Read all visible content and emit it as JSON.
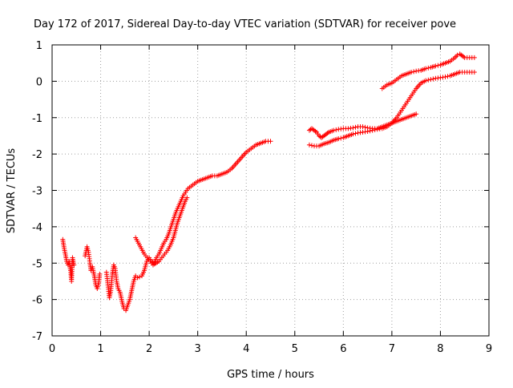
{
  "chart_data": {
    "type": "scatter",
    "title": "Day 172 of 2017, Sidereal Day-to-day VTEC variation (SDTVAR) for receiver pove",
    "xlabel": "GPS time / hours",
    "ylabel": "SDTVAR / TECUs",
    "xlim": [
      0,
      9
    ],
    "ylim": [
      -7,
      1
    ],
    "xticks": [
      "0",
      "1",
      "2",
      "3",
      "4",
      "5",
      "6",
      "7",
      "8",
      "9"
    ],
    "yticks": [
      "1",
      "0",
      "-1",
      "-2",
      "-3",
      "-4",
      "-5",
      "-6",
      "-7"
    ],
    "grid": true,
    "marker": "+",
    "series": [
      {
        "color": "#ff0000",
        "segments": [
          [
            [
              0.22,
              -4.35
            ],
            [
              0.25,
              -4.6
            ],
            [
              0.28,
              -4.8
            ],
            [
              0.3,
              -4.95
            ],
            [
              0.33,
              -5.05
            ],
            [
              0.35,
              -4.95
            ],
            [
              0.38,
              -5.2
            ],
            [
              0.4,
              -5.5
            ],
            [
              0.42,
              -4.85
            ],
            [
              0.45,
              -5.05
            ]
          ],
          [
            [
              0.68,
              -4.8
            ],
            [
              0.72,
              -4.55
            ],
            [
              0.75,
              -4.7
            ],
            [
              0.78,
              -5.0
            ],
            [
              0.8,
              -5.2
            ],
            [
              0.83,
              -5.1
            ],
            [
              0.87,
              -5.35
            ],
            [
              0.9,
              -5.6
            ],
            [
              0.93,
              -5.7
            ],
            [
              0.96,
              -5.55
            ],
            [
              0.98,
              -5.3
            ]
          ],
          [
            [
              1.12,
              -5.25
            ],
            [
              1.15,
              -5.6
            ],
            [
              1.18,
              -5.95
            ],
            [
              1.21,
              -5.75
            ],
            [
              1.24,
              -5.3
            ],
            [
              1.27,
              -5.05
            ],
            [
              1.3,
              -5.15
            ],
            [
              1.33,
              -5.5
            ],
            [
              1.36,
              -5.7
            ],
            [
              1.4,
              -5.8
            ],
            [
              1.44,
              -6.05
            ],
            [
              1.48,
              -6.25
            ],
            [
              1.52,
              -6.3
            ],
            [
              1.56,
              -6.15
            ],
            [
              1.6,
              -6.0
            ],
            [
              1.64,
              -5.75
            ],
            [
              1.68,
              -5.5
            ],
            [
              1.72,
              -5.35
            ],
            [
              1.76,
              -5.4
            ],
            [
              1.8,
              -5.38
            ],
            [
              1.85,
              -5.35
            ],
            [
              1.9,
              -5.2
            ],
            [
              1.95,
              -4.95
            ],
            [
              2.0,
              -4.85
            ],
            [
              2.05,
              -4.95
            ],
            [
              2.1,
              -5.0
            ],
            [
              2.15,
              -4.85
            ],
            [
              2.2,
              -4.75
            ],
            [
              2.25,
              -4.6
            ],
            [
              2.3,
              -4.45
            ],
            [
              2.35,
              -4.35
            ],
            [
              2.4,
              -4.2
            ],
            [
              2.45,
              -4.0
            ],
            [
              2.5,
              -3.8
            ],
            [
              2.55,
              -3.6
            ],
            [
              2.6,
              -3.45
            ],
            [
              2.65,
              -3.3
            ],
            [
              2.7,
              -3.15
            ],
            [
              2.8,
              -2.95
            ],
            [
              2.9,
              -2.85
            ],
            [
              3.0,
              -2.75
            ],
            [
              3.1,
              -2.7
            ],
            [
              3.2,
              -2.65
            ],
            [
              3.3,
              -2.6
            ],
            [
              3.4,
              -2.6
            ],
            [
              3.5,
              -2.55
            ],
            [
              3.6,
              -2.5
            ],
            [
              3.7,
              -2.4
            ],
            [
              3.8,
              -2.25
            ],
            [
              3.9,
              -2.1
            ],
            [
              4.0,
              -1.95
            ],
            [
              4.1,
              -1.85
            ],
            [
              4.2,
              -1.75
            ],
            [
              4.3,
              -1.7
            ],
            [
              4.4,
              -1.65
            ],
            [
              4.5,
              -1.65
            ]
          ],
          [
            [
              1.72,
              -4.3
            ],
            [
              1.78,
              -4.45
            ],
            [
              1.84,
              -4.6
            ],
            [
              1.9,
              -4.75
            ],
            [
              1.96,
              -4.85
            ],
            [
              2.02,
              -4.95
            ],
            [
              2.08,
              -5.05
            ],
            [
              2.14,
              -5.0
            ],
            [
              2.2,
              -4.95
            ],
            [
              2.26,
              -4.85
            ],
            [
              2.32,
              -4.75
            ],
            [
              2.38,
              -4.65
            ],
            [
              2.44,
              -4.5
            ],
            [
              2.5,
              -4.3
            ],
            [
              2.54,
              -4.1
            ],
            [
              2.58,
              -3.9
            ],
            [
              2.62,
              -3.75
            ],
            [
              2.66,
              -3.6
            ],
            [
              2.7,
              -3.45
            ],
            [
              2.74,
              -3.3
            ],
            [
              2.78,
              -3.2
            ]
          ],
          [
            [
              5.3,
              -1.35
            ],
            [
              5.35,
              -1.3
            ],
            [
              5.4,
              -1.35
            ],
            [
              5.45,
              -1.4
            ],
            [
              5.5,
              -1.5
            ],
            [
              5.55,
              -1.55
            ],
            [
              5.6,
              -1.5
            ],
            [
              5.65,
              -1.45
            ],
            [
              5.7,
              -1.4
            ],
            [
              5.8,
              -1.35
            ],
            [
              5.9,
              -1.32
            ],
            [
              6.0,
              -1.3
            ],
            [
              6.1,
              -1.3
            ],
            [
              6.2,
              -1.28
            ],
            [
              6.3,
              -1.25
            ],
            [
              6.4,
              -1.25
            ],
            [
              6.5,
              -1.28
            ],
            [
              6.6,
              -1.3
            ],
            [
              6.7,
              -1.3
            ],
            [
              6.8,
              -1.25
            ],
            [
              6.9,
              -1.2
            ],
            [
              7.0,
              -1.15
            ],
            [
              7.1,
              -1.1
            ],
            [
              7.2,
              -1.05
            ],
            [
              7.3,
              -1.0
            ],
            [
              7.4,
              -0.95
            ],
            [
              7.5,
              -0.9
            ]
          ],
          [
            [
              5.3,
              -1.75
            ],
            [
              5.4,
              -1.78
            ],
            [
              5.5,
              -1.78
            ],
            [
              5.6,
              -1.72
            ],
            [
              5.7,
              -1.68
            ],
            [
              5.8,
              -1.62
            ],
            [
              5.9,
              -1.58
            ],
            [
              6.0,
              -1.55
            ],
            [
              6.1,
              -1.5
            ],
            [
              6.2,
              -1.45
            ],
            [
              6.3,
              -1.42
            ],
            [
              6.4,
              -1.4
            ],
            [
              6.5,
              -1.38
            ],
            [
              6.6,
              -1.35
            ],
            [
              6.7,
              -1.32
            ],
            [
              6.8,
              -1.3
            ],
            [
              6.9,
              -1.25
            ],
            [
              7.0,
              -1.15
            ],
            [
              7.1,
              -1.0
            ],
            [
              7.2,
              -0.8
            ],
            [
              7.3,
              -0.6
            ],
            [
              7.4,
              -0.4
            ],
            [
              7.5,
              -0.2
            ],
            [
              7.6,
              -0.05
            ],
            [
              7.7,
              0.02
            ],
            [
              7.8,
              0.05
            ],
            [
              7.9,
              0.08
            ],
            [
              8.0,
              0.1
            ],
            [
              8.1,
              0.12
            ],
            [
              8.2,
              0.15
            ],
            [
              8.3,
              0.2
            ],
            [
              8.4,
              0.25
            ],
            [
              8.5,
              0.25
            ],
            [
              8.6,
              0.25
            ],
            [
              8.7,
              0.25
            ]
          ],
          [
            [
              6.8,
              -0.2
            ],
            [
              6.9,
              -0.1
            ],
            [
              7.0,
              -0.05
            ],
            [
              7.1,
              0.05
            ],
            [
              7.2,
              0.15
            ],
            [
              7.3,
              0.2
            ],
            [
              7.4,
              0.25
            ],
            [
              7.5,
              0.28
            ],
            [
              7.6,
              0.3
            ],
            [
              7.7,
              0.35
            ],
            [
              7.8,
              0.38
            ],
            [
              7.9,
              0.42
            ],
            [
              8.0,
              0.45
            ],
            [
              8.1,
              0.5
            ],
            [
              8.2,
              0.55
            ],
            [
              8.3,
              0.65
            ],
            [
              8.35,
              0.72
            ],
            [
              8.4,
              0.75
            ],
            [
              8.45,
              0.7
            ],
            [
              8.5,
              0.65
            ],
            [
              8.6,
              0.65
            ],
            [
              8.7,
              0.65
            ]
          ]
        ]
      }
    ]
  }
}
